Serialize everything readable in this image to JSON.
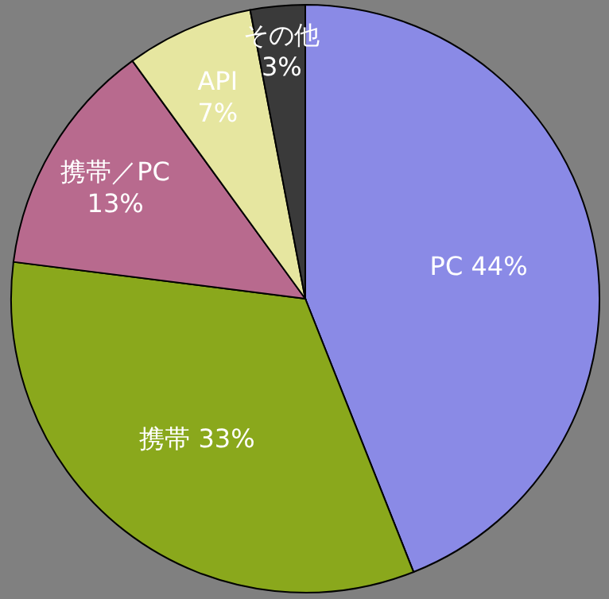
{
  "chart_data": {
    "type": "pie",
    "categories": [
      "PC",
      "携帯",
      "携帯／PC",
      "API",
      "その他"
    ],
    "values": [
      44,
      33,
      13,
      7,
      3
    ],
    "colors": [
      "#8a8ae6",
      "#8aa81c",
      "#b86a8e",
      "#e6e6a0",
      "#3a3a3a"
    ],
    "value_labels": [
      "44%",
      "33%",
      "13%",
      "7%",
      "3%"
    ]
  }
}
